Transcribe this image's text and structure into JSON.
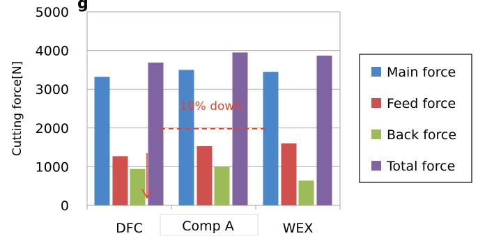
{
  "chart_data": {
    "type": "bar",
    "categories": [
      "DFC",
      "Comp A",
      "WEX"
    ],
    "series": [
      {
        "name": "Main force",
        "values": [
          3320,
          3500,
          3450
        ],
        "color": "#4a86c8"
      },
      {
        "name": "Feed force",
        "values": [
          1270,
          1530,
          1600
        ],
        "color": "#d0504d"
      },
      {
        "name": "Back force",
        "values": [
          940,
          1000,
          640
        ],
        "color": "#9dbb59"
      },
      {
        "name": "Total force",
        "values": [
          3690,
          3950,
          3870
        ],
        "color": "#8064a2"
      }
    ],
    "ylabel": "Cutting force[N]",
    "ylim": [
      0,
      5000
    ],
    "yticks": [
      "0",
      "1000",
      "2000",
      "3000",
      "4000",
      "5000"
    ],
    "grid": true,
    "legend": "right",
    "title_fragment": "g",
    "annotation": {
      "text": "10% down",
      "reference_value": 1980,
      "color": "#e8402a"
    }
  }
}
